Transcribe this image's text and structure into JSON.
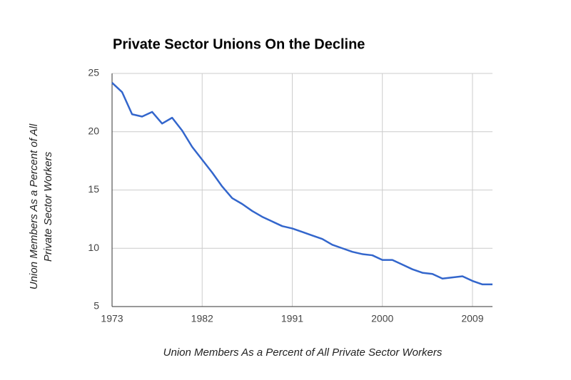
{
  "chart_data": {
    "type": "line",
    "title": "Private Sector Unions On the Decline",
    "x_label": "Union Members As a Percent of All Private Sector Workers",
    "y_label": [
      "Union Members As a Percent of All",
      "Private Sector Workers"
    ],
    "x": [
      1973,
      1974,
      1975,
      1976,
      1977,
      1978,
      1979,
      1980,
      1981,
      1982,
      1983,
      1984,
      1985,
      1986,
      1987,
      1988,
      1989,
      1990,
      1991,
      1992,
      1993,
      1994,
      1995,
      1996,
      1997,
      1998,
      1999,
      2000,
      2001,
      2002,
      2003,
      2004,
      2005,
      2006,
      2007,
      2008,
      2009,
      2010,
      2011
    ],
    "series": [
      {
        "color": "#3366cc",
        "values": [
          24.2,
          23.4,
          21.5,
          21.3,
          21.7,
          20.7,
          21.2,
          20.1,
          18.7,
          17.6,
          16.5,
          15.3,
          14.3,
          13.8,
          13.2,
          12.7,
          12.3,
          11.9,
          11.7,
          11.4,
          11.1,
          10.8,
          10.3,
          10.0,
          9.7,
          9.5,
          9.4,
          9.0,
          9.0,
          8.6,
          8.2,
          7.9,
          7.8,
          7.4,
          7.5,
          7.6,
          7.2,
          6.9,
          6.9
        ]
      }
    ],
    "xlim": [
      1973,
      2011
    ],
    "xticks": [
      1973,
      1982,
      1991,
      2000,
      2009
    ],
    "ylim": [
      5,
      25
    ],
    "yticks": [
      5,
      10,
      15,
      20,
      25
    ],
    "grid": true
  }
}
